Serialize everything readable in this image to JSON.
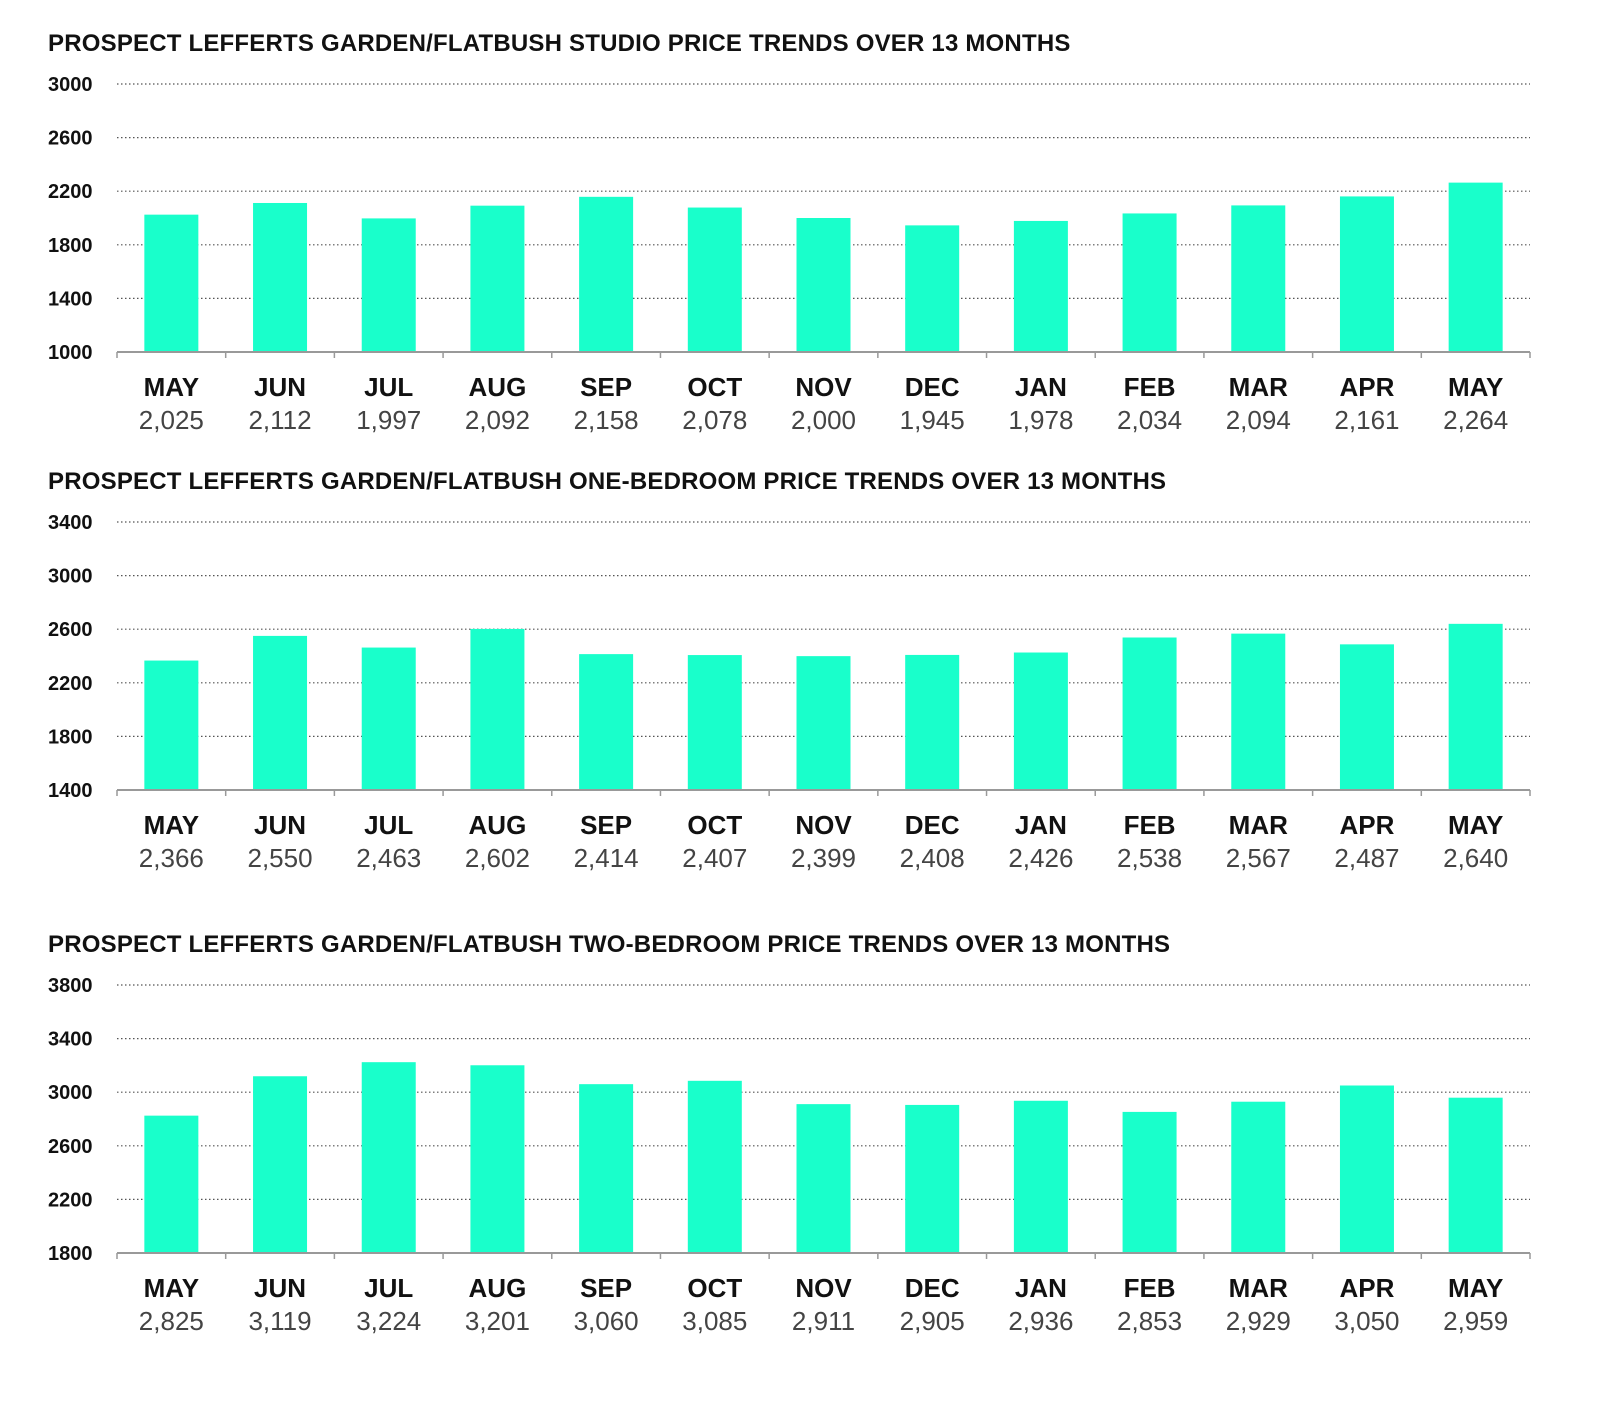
{
  "chart_data": [
    {
      "type": "bar",
      "title": "PROSPECT LEFFERTS GARDEN/FLATBUSH STUDIO PRICE TRENDS OVER 13 MONTHS",
      "categories": [
        "MAY",
        "JUN",
        "JUL",
        "AUG",
        "SEP",
        "OCT",
        "NOV",
        "DEC",
        "JAN",
        "FEB",
        "MAR",
        "APR",
        "MAY"
      ],
      "values": [
        2025,
        2112,
        1997,
        2092,
        2158,
        2078,
        2000,
        1945,
        1978,
        2034,
        2094,
        2161,
        2264
      ],
      "value_labels": [
        "2,025",
        "2,112",
        "1,997",
        "2,092",
        "2,158",
        "2,078",
        "2,000",
        "1,945",
        "1,978",
        "2,034",
        "2,094",
        "2,161",
        "2,264"
      ],
      "ylim": [
        1000,
        3000
      ],
      "yticks": [
        1000,
        1400,
        1800,
        2200,
        2600,
        3000
      ],
      "bar_color": "#19FFCB",
      "grid": true
    },
    {
      "type": "bar",
      "title": "PROSPECT LEFFERTS GARDEN/FLATBUSH ONE-BEDROOM PRICE TRENDS OVER 13 MONTHS",
      "categories": [
        "MAY",
        "JUN",
        "JUL",
        "AUG",
        "SEP",
        "OCT",
        "NOV",
        "DEC",
        "JAN",
        "FEB",
        "MAR",
        "APR",
        "MAY"
      ],
      "values": [
        2366,
        2550,
        2463,
        2602,
        2414,
        2407,
        2399,
        2408,
        2426,
        2538,
        2567,
        2487,
        2640
      ],
      "value_labels": [
        "2,366",
        "2,550",
        "2,463",
        "2,602",
        "2,414",
        "2,407",
        "2,399",
        "2,408",
        "2,426",
        "2,538",
        "2,567",
        "2,487",
        "2,640"
      ],
      "ylim": [
        1400,
        3400
      ],
      "yticks": [
        1400,
        1800,
        2200,
        2600,
        3000,
        3400
      ],
      "bar_color": "#19FFCB",
      "grid": true
    },
    {
      "type": "bar",
      "title": "PROSPECT LEFFERTS GARDEN/FLATBUSH TWO-BEDROOM PRICE TRENDS OVER 13 MONTHS",
      "categories": [
        "MAY",
        "JUN",
        "JUL",
        "AUG",
        "SEP",
        "OCT",
        "NOV",
        "DEC",
        "JAN",
        "FEB",
        "MAR",
        "APR",
        "MAY"
      ],
      "values": [
        2825,
        3119,
        3224,
        3201,
        3060,
        3085,
        2911,
        2905,
        2936,
        2853,
        2929,
        3050,
        2959
      ],
      "value_labels": [
        "2,825",
        "3,119",
        "3,224",
        "3,201",
        "3,060",
        "3,085",
        "2,911",
        "2,905",
        "2,936",
        "2,853",
        "2,929",
        "3,050",
        "2,959"
      ],
      "ylim": [
        1800,
        3800
      ],
      "yticks": [
        1800,
        2200,
        2600,
        3000,
        3400,
        3800
      ],
      "bar_color": "#19FFCB",
      "grid": true
    }
  ]
}
